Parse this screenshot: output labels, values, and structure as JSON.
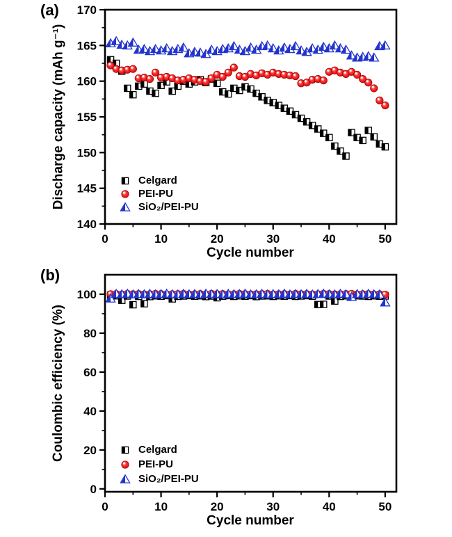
{
  "figure": {
    "background": "#ffffff",
    "frame_color": "#000000",
    "colors": {
      "celgard": "#000000",
      "pei_pu": "#ee0000",
      "sio2_pei_pu": "#2334cc"
    }
  },
  "chart_data": [
    {
      "panel_label": "(a)",
      "type": "scatter",
      "xlabel": "Cycle number",
      "ylabel": "Discharge capacity (mAh g⁻¹)",
      "xlim": [
        0,
        52
      ],
      "ylim": [
        140,
        170
      ],
      "xticks": [
        0,
        10,
        20,
        30,
        40,
        50
      ],
      "yticks": [
        140,
        145,
        150,
        155,
        160,
        165,
        170
      ],
      "x_minor_step": 5,
      "y_minor_step": 2.5,
      "grid": false,
      "legend_position": "lower-left",
      "x": [
        1,
        2,
        3,
        4,
        5,
        6,
        7,
        8,
        9,
        10,
        11,
        12,
        13,
        14,
        15,
        16,
        17,
        18,
        19,
        20,
        21,
        22,
        23,
        24,
        25,
        26,
        27,
        28,
        29,
        30,
        31,
        32,
        33,
        34,
        35,
        36,
        37,
        38,
        39,
        40,
        41,
        42,
        43,
        44,
        45,
        46,
        47,
        48,
        49,
        50
      ],
      "series": [
        {
          "name": "Celgard",
          "marker": "half-square",
          "color": "#000000",
          "values": [
            163.0,
            162.5,
            161.4,
            159.0,
            158.1,
            159.3,
            159.6,
            158.6,
            158.3,
            159.4,
            159.9,
            158.6,
            159.3,
            160.0,
            159.6,
            159.9,
            160.2,
            159.8,
            160.3,
            159.7,
            158.5,
            158.2,
            159.0,
            158.7,
            159.2,
            158.9,
            158.3,
            157.8,
            157.3,
            157.0,
            156.6,
            156.2,
            155.8,
            155.3,
            154.8,
            154.3,
            153.8,
            153.3,
            152.7,
            152.1,
            150.9,
            150.2,
            149.5,
            152.8,
            152.1,
            151.7,
            153.1,
            152.2,
            151.2,
            150.8
          ]
        },
        {
          "name": "PEI-PU",
          "marker": "sphere",
          "color": "#ee0000",
          "values": [
            162.2,
            161.7,
            161.5,
            161.6,
            161.7,
            160.4,
            160.5,
            160.3,
            161.2,
            160.5,
            160.6,
            160.4,
            160.1,
            160.2,
            160.4,
            160.2,
            160.0,
            159.9,
            160.4,
            160.9,
            160.6,
            161.2,
            161.9,
            160.7,
            160.6,
            161.0,
            160.8,
            161.1,
            160.9,
            161.2,
            161.0,
            160.9,
            160.8,
            160.7,
            159.7,
            159.8,
            160.2,
            160.3,
            160.1,
            161.3,
            161.5,
            161.2,
            161.0,
            161.3,
            160.9,
            160.3,
            159.8,
            159.0,
            157.3,
            156.6
          ]
        },
        {
          "name": "SiO₂/PEI-PU",
          "marker": "half-triangle",
          "color": "#2334cc",
          "values": [
            165.3,
            165.6,
            165.1,
            165.0,
            165.4,
            164.4,
            164.5,
            164.2,
            164.5,
            164.3,
            164.6,
            164.2,
            164.5,
            164.7,
            163.9,
            164.1,
            164.0,
            163.8,
            164.4,
            164.2,
            164.5,
            164.6,
            164.9,
            164.4,
            164.2,
            164.7,
            164.4,
            164.9,
            165.0,
            164.6,
            164.3,
            164.7,
            164.5,
            164.9,
            164.3,
            164.1,
            164.6,
            164.4,
            164.8,
            164.6,
            165.0,
            164.6,
            164.4,
            163.6,
            163.3,
            163.4,
            163.5,
            163.3,
            164.9,
            165.0
          ]
        }
      ]
    },
    {
      "panel_label": "(b)",
      "type": "scatter",
      "xlabel": "Cycle number",
      "ylabel": "Coulombic efficiency (%)",
      "xlim": [
        0,
        52
      ],
      "ylim": [
        -1.5,
        110
      ],
      "xticks": [
        0,
        10,
        20,
        30,
        40,
        50
      ],
      "yticks": [
        0,
        20,
        40,
        60,
        80,
        100
      ],
      "x_minor_step": 5,
      "y_minor_step": 10,
      "grid": false,
      "legend_position": "lower-left",
      "x": [
        1,
        2,
        3,
        4,
        5,
        6,
        7,
        8,
        9,
        10,
        11,
        12,
        13,
        14,
        15,
        16,
        17,
        18,
        19,
        20,
        21,
        22,
        23,
        24,
        25,
        26,
        27,
        28,
        29,
        30,
        31,
        32,
        33,
        34,
        35,
        36,
        37,
        38,
        39,
        40,
        41,
        42,
        43,
        44,
        45,
        46,
        47,
        48,
        49,
        50
      ],
      "series": [
        {
          "name": "Celgard",
          "marker": "half-square",
          "color": "#000000",
          "values": [
            99.5,
            99.2,
            96.9,
            99.1,
            94.6,
            98.9,
            95.1,
            98.8,
            99.2,
            99.0,
            99.3,
            97.6,
            98.9,
            99.1,
            99.3,
            99.0,
            99.2,
            98.8,
            99.1,
            98.2,
            99.0,
            99.3,
            98.9,
            99.2,
            99.0,
            99.3,
            98.8,
            99.1,
            99.2,
            98.9,
            99.2,
            99.0,
            99.3,
            98.9,
            99.1,
            99.3,
            99.0,
            94.7,
            94.8,
            99.1,
            96.5,
            98.9,
            99.2,
            99.0,
            99.2,
            99.1,
            98.9,
            99.2,
            99.0,
            99.1
          ]
        },
        {
          "name": "PEI-PU",
          "marker": "sphere",
          "color": "#ee0000",
          "values": [
            100.0,
            100.1,
            99.9,
            100.2,
            100.0,
            100.1,
            99.9,
            100.0,
            100.2,
            100.1,
            99.9,
            100.0,
            100.1,
            100.2,
            99.9,
            100.0,
            100.1,
            99.9,
            100.2,
            100.0,
            100.1,
            99.9,
            100.0,
            100.2,
            100.1,
            99.9,
            100.0,
            100.1,
            100.2,
            99.9,
            100.0,
            100.1,
            99.9,
            100.2,
            100.0,
            100.1,
            99.9,
            100.0,
            100.2,
            100.1,
            99.9,
            100.0,
            100.1,
            100.2,
            99.9,
            100.0,
            100.1,
            99.9,
            100.0,
            99.8
          ]
        },
        {
          "name": "SiO₂/PEI-PU",
          "marker": "half-triangle",
          "color": "#2334cc",
          "values": [
            97.8,
            100.2,
            100.0,
            100.3,
            99.9,
            100.1,
            100.0,
            100.2,
            99.9,
            100.1,
            100.3,
            100.0,
            99.9,
            100.2,
            100.0,
            100.1,
            99.9,
            100.3,
            100.0,
            100.1,
            99.9,
            100.2,
            100.0,
            100.1,
            100.3,
            99.9,
            100.0,
            100.2,
            99.9,
            100.1,
            100.0,
            100.3,
            99.9,
            100.1,
            100.0,
            100.2,
            99.9,
            100.1,
            100.3,
            100.0,
            99.9,
            100.2,
            100.0,
            98.6,
            100.1,
            99.9,
            100.2,
            100.0,
            99.9,
            95.8
          ]
        }
      ]
    }
  ]
}
